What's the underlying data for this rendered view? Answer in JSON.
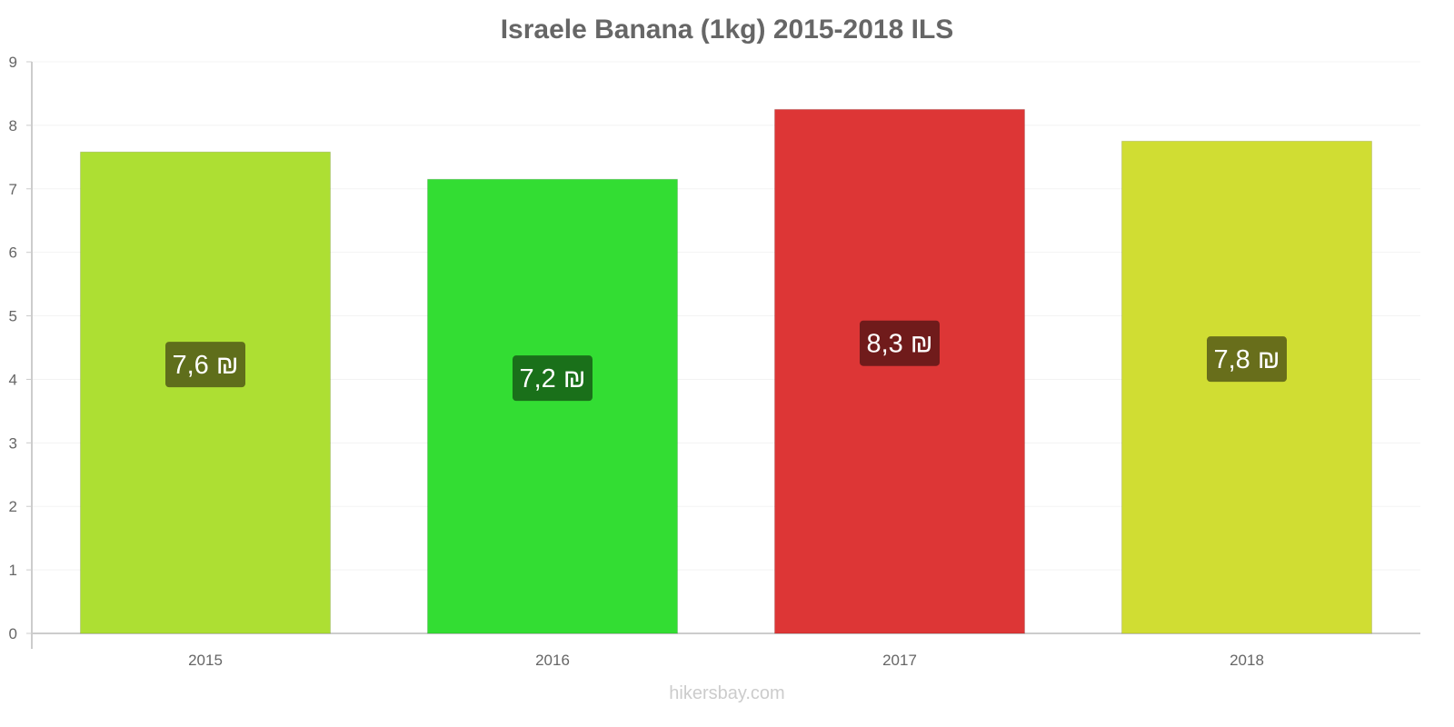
{
  "chart_data": {
    "type": "bar",
    "title": "Israele Banana (1kg) 2015-2018 ILS",
    "categories": [
      "2015",
      "2016",
      "2017",
      "2018"
    ],
    "values": [
      7.58,
      7.15,
      8.25,
      7.75
    ],
    "data_labels": [
      "7,6 ₪",
      "7,2 ₪",
      "8,3 ₪",
      "7,8 ₪"
    ],
    "colors": [
      "#addf33",
      "#33dd33",
      "#dd3636",
      "#d0dd33"
    ],
    "label_colors": [
      "#5f6e1b",
      "#1a701a",
      "#701b1b",
      "#686e1b"
    ],
    "ylim": [
      0,
      9
    ],
    "yticks": [
      0,
      1,
      2,
      3,
      4,
      5,
      6,
      7,
      8,
      9
    ],
    "xlabel": "",
    "ylabel": "",
    "grid": true,
    "legend": "none"
  },
  "footer": "hikersbay.com"
}
